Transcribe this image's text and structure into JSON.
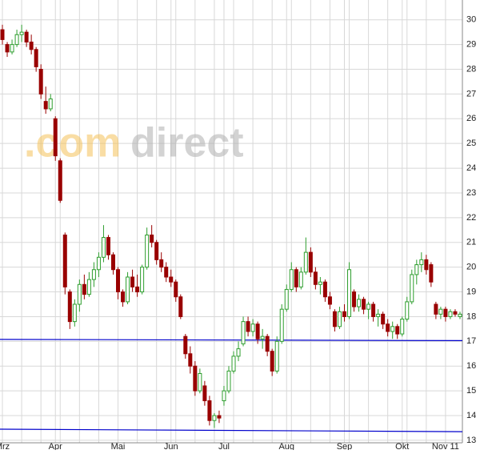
{
  "chart_data": {
    "type": "candlestick",
    "watermark": {
      "prefix": ".com",
      "suffix": "direct"
    },
    "categories": [
      "Mrz",
      null,
      null,
      null,
      null,
      null,
      null,
      null,
      null,
      null,
      null,
      "Apr",
      null,
      null,
      null,
      null,
      null,
      null,
      null,
      null,
      null,
      null,
      null,
      null,
      "Mai",
      null,
      null,
      null,
      null,
      null,
      null,
      null,
      null,
      null,
      null,
      "Jun",
      null,
      null,
      null,
      null,
      null,
      null,
      null,
      null,
      null,
      null,
      "Jul",
      null,
      null,
      null,
      null,
      null,
      null,
      null,
      null,
      null,
      null,
      null,
      null,
      "Aug",
      null,
      null,
      null,
      null,
      null,
      null,
      null,
      null,
      null,
      null,
      null,
      "Sep",
      null,
      null,
      null,
      null,
      null,
      null,
      null,
      null,
      null,
      null,
      null,
      "Okt",
      null,
      null,
      null,
      null,
      null,
      null,
      null,
      null,
      "Nov 11",
      null,
      null,
      null
    ],
    "series": [
      {
        "up_color": "#2e9e2e",
        "down_color": "#990000",
        "open": [
          29.6,
          29.0,
          28.7,
          29.0,
          29.4,
          29.5,
          29.1,
          28.8,
          28.0,
          26.7,
          26.4,
          26.0,
          24.3,
          21.3,
          19.0,
          17.8,
          18.5,
          19.3,
          18.9,
          19.5,
          19.9,
          20.4,
          21.2,
          20.5,
          19.9,
          19.0,
          18.6,
          19.6,
          19.2,
          19.0,
          20.0,
          21.3,
          21.0,
          20.3,
          20.0,
          19.6,
          19.4,
          18.8,
          17.2,
          16.5,
          16.0,
          15.0,
          15.2,
          14.6,
          13.8,
          14.0,
          14.6,
          15.0,
          15.8,
          16.4,
          16.9,
          17.8,
          17.4,
          17.7,
          17.1,
          17.2,
          16.6,
          15.8,
          17.0,
          18.3,
          19.1,
          19.9,
          19.2,
          19.8,
          20.6,
          19.8,
          19.3,
          19.4,
          18.8,
          18.2,
          17.6,
          18.2,
          18.0,
          19.0,
          18.4,
          18.7,
          18.3,
          18.5,
          18.0,
          18.1,
          17.7,
          17.4,
          17.6,
          17.3,
          17.9,
          18.6,
          19.7,
          20.1,
          20.3,
          20.1,
          18.5,
          18.1,
          18.3,
          18.0,
          18.2,
          18.0
        ],
        "high": [
          29.8,
          29.1,
          29.2,
          29.6,
          29.8,
          29.6,
          29.4,
          28.9,
          28.2,
          27.3,
          27.0,
          26.1,
          24.4,
          21.4,
          19.1,
          18.7,
          19.5,
          19.7,
          19.8,
          20.2,
          20.6,
          21.7,
          21.3,
          20.6,
          20.0,
          19.1,
          19.8,
          19.9,
          19.7,
          20.1,
          21.6,
          21.7,
          21.1,
          20.6,
          20.2,
          19.9,
          19.5,
          18.9,
          17.3,
          16.8,
          16.2,
          15.9,
          15.4,
          14.8,
          14.1,
          14.2,
          15.2,
          16.0,
          16.6,
          17.0,
          18.0,
          18.0,
          17.9,
          17.8,
          17.5,
          17.3,
          16.7,
          17.2,
          18.5,
          19.3,
          20.2,
          20.0,
          20.0,
          21.2,
          20.8,
          20.0,
          19.6,
          19.5,
          19.0,
          18.3,
          18.4,
          18.5,
          20.2,
          19.1,
          18.9,
          18.8,
          18.6,
          18.6,
          18.3,
          18.2,
          17.9,
          17.8,
          17.7,
          18.0,
          18.8,
          19.9,
          20.3,
          20.6,
          20.5,
          20.2,
          18.6,
          18.4,
          18.4,
          18.3,
          18.3,
          18.2
        ],
        "low": [
          29.0,
          28.5,
          28.6,
          28.9,
          29.1,
          28.9,
          28.6,
          27.9,
          26.8,
          26.2,
          26.3,
          24.3,
          22.6,
          18.9,
          17.5,
          17.6,
          18.2,
          18.7,
          18.8,
          19.2,
          19.6,
          20.2,
          20.3,
          19.7,
          18.7,
          18.4,
          18.5,
          19.0,
          18.8,
          18.9,
          19.9,
          20.8,
          20.1,
          19.8,
          19.4,
          19.2,
          18.6,
          17.9,
          16.3,
          15.7,
          14.8,
          14.9,
          14.4,
          13.6,
          13.5,
          13.7,
          14.4,
          14.9,
          15.7,
          16.2,
          16.8,
          17.2,
          17.2,
          16.9,
          16.7,
          16.4,
          15.6,
          15.7,
          16.9,
          18.2,
          19.0,
          19.0,
          19.1,
          19.7,
          19.6,
          19.1,
          18.9,
          18.6,
          18.3,
          17.4,
          17.5,
          17.8,
          17.9,
          18.2,
          18.2,
          18.1,
          17.9,
          17.8,
          17.6,
          17.5,
          17.2,
          17.1,
          17.1,
          17.2,
          17.8,
          18.5,
          19.3,
          19.8,
          19.7,
          19.2,
          17.9,
          17.9,
          17.8,
          17.9,
          18.0,
          17.9
        ],
        "close": [
          29.2,
          28.7,
          29.0,
          29.4,
          29.5,
          29.1,
          28.8,
          28.1,
          27.0,
          26.4,
          26.8,
          24.5,
          22.7,
          19.2,
          17.8,
          18.5,
          19.3,
          18.9,
          19.5,
          19.9,
          20.4,
          21.2,
          20.5,
          19.9,
          19.0,
          18.6,
          19.6,
          19.2,
          19.0,
          20.0,
          21.3,
          21.0,
          20.3,
          20.0,
          19.6,
          19.4,
          18.8,
          18.0,
          16.5,
          16.0,
          15.0,
          15.7,
          14.6,
          13.8,
          14.0,
          13.9,
          15.0,
          15.8,
          16.4,
          16.7,
          17.8,
          17.4,
          17.7,
          17.1,
          17.2,
          16.6,
          15.8,
          17.0,
          18.3,
          19.1,
          19.9,
          19.2,
          19.8,
          20.6,
          19.8,
          19.3,
          19.4,
          18.8,
          18.5,
          17.6,
          18.2,
          18.0,
          19.9,
          18.4,
          18.7,
          18.3,
          18.5,
          18.0,
          18.1,
          17.7,
          17.4,
          17.6,
          17.3,
          17.9,
          18.6,
          19.7,
          20.1,
          20.3,
          19.9,
          19.4,
          18.1,
          18.3,
          18.0,
          18.2,
          18.1,
          18.1
        ]
      }
    ],
    "trend_lines": [
      {
        "color": "#0000cc",
        "values": [
          17.08,
          17.03
        ]
      },
      {
        "color": "#0000cc",
        "values": [
          13.45,
          13.35
        ]
      }
    ],
    "ylim": [
      12.9,
      30.8
    ],
    "yticks": [
      13,
      14,
      15,
      16,
      17,
      18,
      19,
      20,
      21,
      22,
      23,
      24,
      25,
      26,
      27,
      28,
      29,
      30
    ],
    "grid": true
  }
}
